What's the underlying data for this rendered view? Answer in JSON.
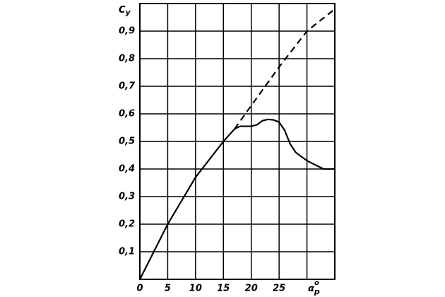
{
  "chart_data": {
    "type": "line",
    "ylabel": {
      "base": "C",
      "sub": "y"
    },
    "xlabel": {
      "base": "α",
      "sup": "o",
      "sub": "p"
    },
    "xlim": [
      0,
      35
    ],
    "ylim": [
      0,
      1.0
    ],
    "xticks": [
      0,
      5,
      10,
      15,
      20,
      25
    ],
    "xgrid": [
      5,
      10,
      15,
      20,
      25,
      30
    ],
    "yticks": [
      {
        "value": 0.1,
        "label": "0,1"
      },
      {
        "value": 0.2,
        "label": "0,2"
      },
      {
        "value": 0.3,
        "label": "0,3"
      },
      {
        "value": 0.4,
        "label": "0,4"
      },
      {
        "value": 0.5,
        "label": "0,5"
      },
      {
        "value": 0.6,
        "label": "0,6"
      },
      {
        "value": 0.7,
        "label": "0,7"
      },
      {
        "value": 0.8,
        "label": "0,8"
      },
      {
        "value": 0.9,
        "label": "0,9"
      }
    ],
    "grid": true,
    "series": [
      {
        "color": "#000000",
        "style": "solid",
        "x": [
          0,
          5,
          10,
          15,
          17,
          18,
          20,
          21,
          22,
          23,
          24,
          25,
          26,
          27,
          28,
          30,
          32,
          33,
          35
        ],
        "values": [
          0,
          0.2,
          0.37,
          0.5,
          0.545,
          0.555,
          0.555,
          0.56,
          0.575,
          0.58,
          0.578,
          0.57,
          0.54,
          0.49,
          0.46,
          0.43,
          0.41,
          0.4,
          0.4
        ]
      },
      {
        "color": "#000000",
        "style": "dashed",
        "x": [
          17,
          20,
          25,
          30,
          35
        ],
        "values": [
          0.545,
          0.63,
          0.77,
          0.9,
          0.98
        ]
      }
    ]
  }
}
